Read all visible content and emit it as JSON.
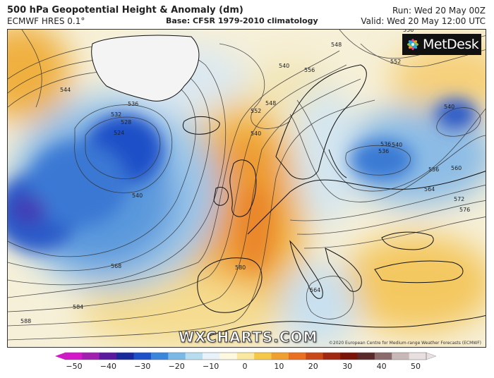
{
  "header": {
    "title": "500 hPa Geopotential Height & Anomaly (dm)",
    "model": "ECMWF HRES 0.1°",
    "base": "Base: CFSR 1979-2010 climatology",
    "run": "Run: Wed 20 May 00Z",
    "valid": "Valid: Wed 20 May 12:00 UTC"
  },
  "logo": {
    "text": "MetDesk",
    "icon": "metdesk-flower-icon"
  },
  "watermark": "WXCHARTS.COM",
  "copyright": "©2020 European Centre for Medium-range Weather Forecasts (ECMWF)",
  "contour_labels": [
    "556",
    "552",
    "540",
    "544",
    "536",
    "532",
    "528",
    "524",
    "540",
    "548",
    "552",
    "540",
    "536",
    "536",
    "540",
    "556",
    "560",
    "564",
    "572",
    "576",
    "540",
    "548",
    "568",
    "580",
    "584",
    "588",
    "564",
    "556"
  ],
  "colorbar": {
    "ticks": [
      "−50",
      "−40",
      "−30",
      "−20",
      "−10",
      "0",
      "10",
      "20",
      "30",
      "40",
      "50"
    ],
    "colors": [
      "#d218c8",
      "#a020b0",
      "#5a1aa0",
      "#1a2a9a",
      "#1e50c8",
      "#3a86dc",
      "#7ab8e6",
      "#b8dcf0",
      "#e8f2f8",
      "#fdf8e0",
      "#fbe8a0",
      "#f5c84a",
      "#f0a030",
      "#e87020",
      "#c84818",
      "#a02810",
      "#7a1408",
      "#5a2a2a",
      "#8a6a6a",
      "#c8b8b8",
      "#e8e0e0"
    ]
  }
}
